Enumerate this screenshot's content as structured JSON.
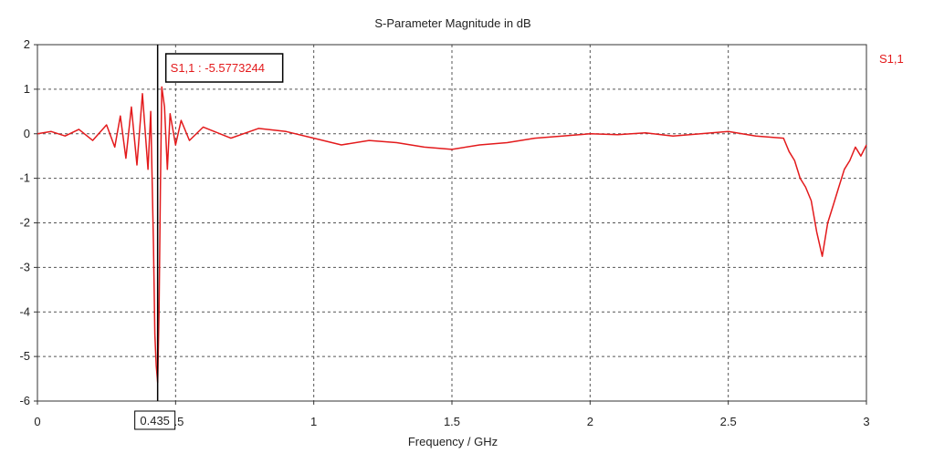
{
  "chart_data": {
    "type": "line",
    "title": "S-Parameter Magnitude in dB",
    "xlabel": "Frequency / GHz",
    "ylabel": "",
    "xlim": [
      0,
      3
    ],
    "ylim": [
      -6,
      2
    ],
    "xticks": [
      0,
      0.5,
      1,
      1.5,
      2,
      2.5,
      3
    ],
    "xtick_labels": [
      "0",
      "0.5",
      "1",
      "1.5",
      "2",
      "2.5",
      "3"
    ],
    "yticks": [
      2,
      1,
      0,
      -1,
      -2,
      -3,
      -4,
      -5,
      -6
    ],
    "ytick_labels": [
      "2",
      "1",
      "0",
      "-1",
      "-2",
      "-3",
      "-4",
      "-5",
      "-6"
    ],
    "grid": true,
    "legend_position": "top-right",
    "series": [
      {
        "name": "S1,1",
        "color": "#e31a1c",
        "x": [
          0,
          0.05,
          0.1,
          0.15,
          0.2,
          0.25,
          0.28,
          0.3,
          0.32,
          0.34,
          0.36,
          0.38,
          0.4,
          0.41,
          0.42,
          0.425,
          0.43,
          0.435,
          0.44,
          0.445,
          0.45,
          0.46,
          0.47,
          0.48,
          0.5,
          0.52,
          0.55,
          0.6,
          0.7,
          0.8,
          0.9,
          1.0,
          1.1,
          1.2,
          1.3,
          1.4,
          1.5,
          1.6,
          1.7,
          1.8,
          1.9,
          2.0,
          2.1,
          2.2,
          2.3,
          2.4,
          2.5,
          2.6,
          2.7,
          2.72,
          2.74,
          2.76,
          2.78,
          2.8,
          2.82,
          2.84,
          2.86,
          2.88,
          2.9,
          2.92,
          2.94,
          2.96,
          2.98,
          3.0
        ],
        "values": [
          0.0,
          0.05,
          -0.05,
          0.1,
          -0.15,
          0.2,
          -0.3,
          0.4,
          -0.55,
          0.6,
          -0.7,
          0.9,
          -0.8,
          0.5,
          -2.5,
          -4.5,
          -5.2,
          -5.58,
          -4.0,
          -1.2,
          1.05,
          0.6,
          -0.8,
          0.45,
          -0.25,
          0.3,
          -0.15,
          0.15,
          -0.1,
          0.12,
          0.05,
          -0.1,
          -0.25,
          -0.15,
          -0.2,
          -0.3,
          -0.35,
          -0.25,
          -0.2,
          -0.1,
          -0.05,
          0.0,
          -0.02,
          0.02,
          -0.05,
          0.0,
          0.05,
          -0.05,
          -0.1,
          -0.4,
          -0.6,
          -1.0,
          -1.2,
          -1.5,
          -2.2,
          -2.75,
          -2.0,
          -1.6,
          -1.2,
          -0.8,
          -0.6,
          -0.3,
          -0.5,
          -0.25
        ]
      }
    ],
    "marker": {
      "x": 0.435,
      "x_label": "0.435",
      "label": "S1,1 : -5.5773244"
    },
    "colors": {
      "series": "#e31a1c",
      "marker_line": "#000000",
      "grid": "#555555"
    }
  }
}
